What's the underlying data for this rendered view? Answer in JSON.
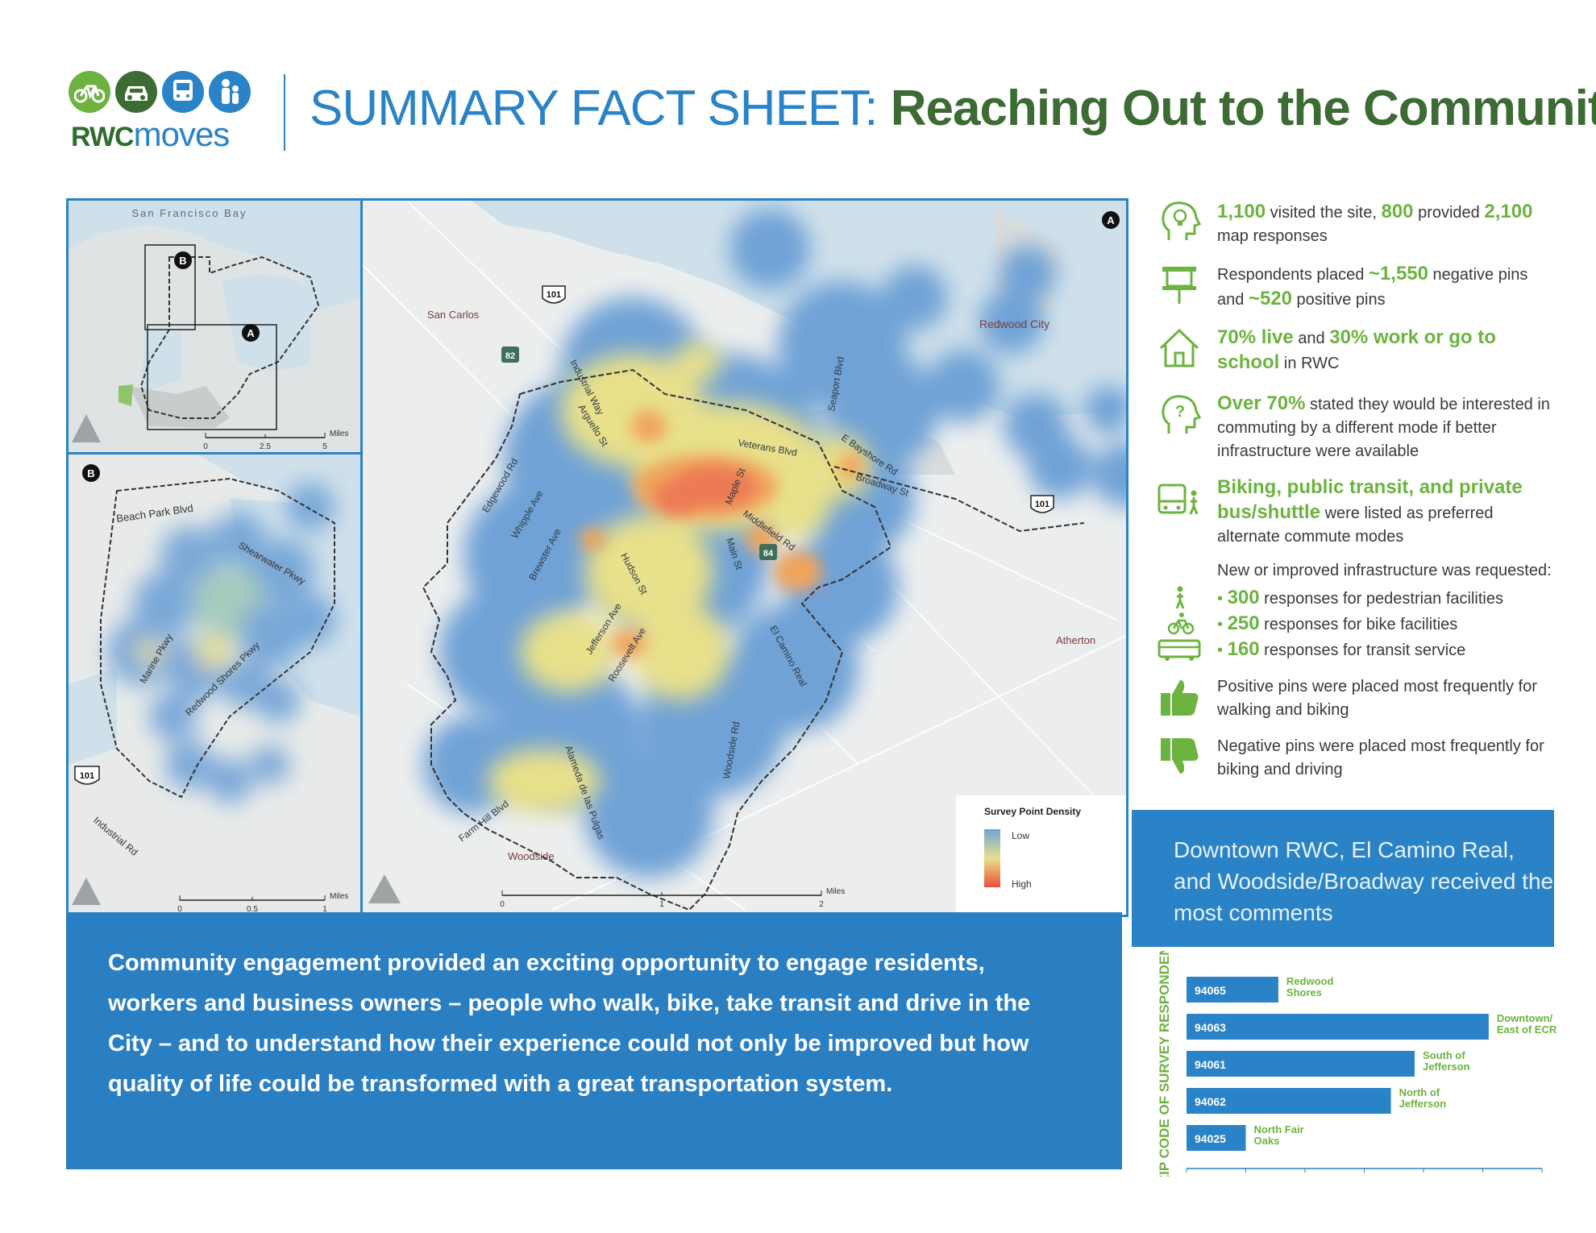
{
  "header": {
    "logo_word_bold": "RWC",
    "logo_word_light": "moves",
    "title_light": "SUMMARY FACT SHEET:",
    "title_bold": "Reaching Out to the Community"
  },
  "logo_icons": [
    "bike-icon",
    "car-icon",
    "bus-icon",
    "family-icon"
  ],
  "colors": {
    "brand_blue": "#2a83c6",
    "brand_green": "#6cb33f",
    "dark_green": "#3d6b34"
  },
  "map": {
    "inset_top": {
      "bay_label": "San Francisco Bay",
      "marker_b": "B",
      "marker_a": "A",
      "scale": [
        "0",
        "2.5",
        "5"
      ],
      "scale_unit": "Miles"
    },
    "inset_bottom": {
      "marker": "B",
      "streets": [
        "Beach Park Blvd",
        "Shearwater Pkwy",
        "Marine Pkwy",
        "Redwood Shores Pkwy",
        "Industrial Rd"
      ],
      "shield": "101",
      "scale": [
        "0",
        "0.5",
        "1"
      ],
      "scale_unit": "Miles"
    },
    "main": {
      "marker": "A",
      "places": [
        "San Carlos",
        "Redwood City",
        "Atherton",
        "Woodside"
      ],
      "shields": [
        "101",
        "82",
        "84",
        "101"
      ],
      "streets": [
        "Industrial Way",
        "Arguello St",
        "Seaport Blvd",
        "E Bayshore Rd",
        "Veterans Blvd",
        "Broadway St",
        "Edgewood Rd",
        "Whipple Ave",
        "Brewster Ave",
        "Hudson St",
        "Maple St",
        "Middlefield Rd",
        "Main St",
        "Jefferson Ave",
        "Roosevelt Ave",
        "El Camino Real",
        "Woodside Rd",
        "Alameda de las Pulgas",
        "Farm Hill Blvd"
      ],
      "scale": [
        "0",
        "1",
        "2"
      ],
      "scale_unit": "Miles",
      "legend_title": "Survey Point Density",
      "legend_low": "Low",
      "legend_high": "High"
    }
  },
  "stats": [
    {
      "icon": "lightbulb-head-icon",
      "parts": [
        [
          "1,100",
          true
        ],
        [
          " visited the site, ",
          false
        ],
        [
          "800",
          true
        ],
        [
          " provided ",
          false
        ],
        [
          "2,100",
          true
        ],
        [
          " map responses",
          false
        ]
      ]
    },
    {
      "icon": "pushpin-icon",
      "parts": [
        [
          "Respondents placed ",
          false
        ],
        [
          "~1,550",
          true
        ],
        [
          " negative pins and ",
          false
        ],
        [
          "~520",
          true
        ],
        [
          " positive pins",
          false
        ]
      ]
    },
    {
      "icon": "house-icon",
      "parts": [
        [
          "70% live",
          true
        ],
        [
          " and ",
          false
        ],
        [
          "30% work or go to school",
          true
        ],
        [
          " in RWC",
          false
        ]
      ]
    },
    {
      "icon": "question-head-icon",
      "parts": [
        [
          "Over 70%",
          true
        ],
        [
          " stated they would be interested in commuting by a different mode if better infrastructure were available",
          false
        ]
      ]
    },
    {
      "icon": "bus-walker-icon",
      "parts": [
        [
          "Biking, public transit, and private bus/shuttle",
          true
        ],
        [
          " were listed as preferred alternate commute modes",
          false
        ]
      ]
    }
  ],
  "infrastructure": {
    "intro": "New or improved infrastructure was requested:",
    "items": [
      {
        "icon": "pedestrian-icon",
        "value": "300",
        "text": " responses for pedestrian facilities"
      },
      {
        "icon": "bicycle-icon",
        "value": "250",
        "text": " responses for bike facilities"
      },
      {
        "icon": "transit-bus-icon",
        "value": "160",
        "text": " responses for transit service"
      }
    ]
  },
  "pins": [
    {
      "icon": "thumbs-up-icon",
      "text": "Positive pins were placed most frequently for walking and biking"
    },
    {
      "icon": "thumbs-down-icon",
      "text": "Negative pins were placed most frequently for biking and driving"
    }
  ],
  "callout": "Downtown RWC, El Camino Real, and Woodside/Broadway received the most comments",
  "quote": "Community engagement provided an exciting opportunity to engage residents, workers and business owners – people who walk, bike, take transit and drive in the City – and to understand how their experience could not only be improved but how quality of life could be transformed with a great transportation system.",
  "chart_data": {
    "type": "bar",
    "orientation": "horizontal",
    "ylabel": "ZIP CODE OF SURVEY RESPONDENTS",
    "categories": [
      "94065",
      "94063",
      "94061",
      "94062",
      "94025"
    ],
    "labels": [
      "Redwood Shores",
      "Downtown/ East of ECR",
      "South of Jefferson",
      "North of Jefferson",
      "North Fair Oaks"
    ],
    "values": [
      31,
      102,
      77,
      69,
      20
    ],
    "xlim": [
      0,
      120
    ],
    "xticks": [
      "0",
      "20",
      "40",
      "60",
      "80",
      "100",
      "120"
    ]
  }
}
